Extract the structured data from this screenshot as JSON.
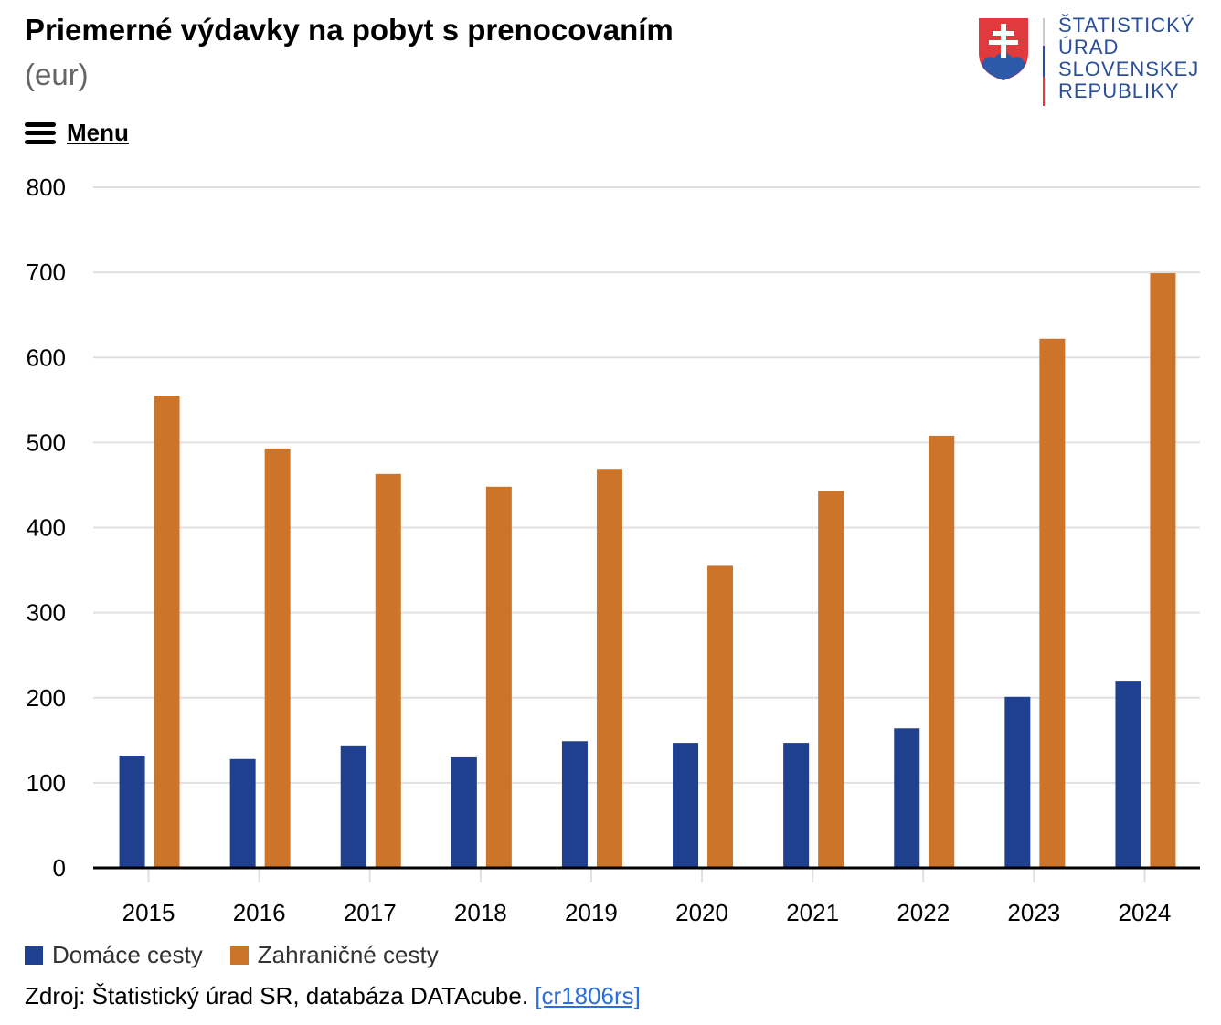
{
  "header": {
    "title": "Priemerné výdavky na pobyt s prenocovaním",
    "subtitle": "(eur)",
    "menu_label": "Menu"
  },
  "logo": {
    "lines": [
      "ŠTATISTICKÝ",
      "ÚRAD",
      "SLOVENSKEJ",
      "REPUBLIKY"
    ]
  },
  "chart_data": {
    "type": "bar",
    "title": "Priemerné výdavky na pobyt s prenocovaním",
    "ylabel": "eur",
    "xlabel": "",
    "ylim": [
      0,
      800
    ],
    "yticks": [
      0,
      100,
      200,
      300,
      400,
      500,
      600,
      700,
      800
    ],
    "grid": true,
    "legend": "bottom-left",
    "categories": [
      "2015",
      "2016",
      "2017",
      "2018",
      "2019",
      "2020",
      "2021",
      "2022",
      "2023",
      "2024"
    ],
    "series": [
      {
        "name": "Domáce cesty",
        "color": "#1f3f8f",
        "values": [
          132,
          128,
          143,
          130,
          149,
          147,
          147,
          164,
          201,
          220
        ]
      },
      {
        "name": "Zahraničné cesty",
        "color": "#cc742a",
        "values": [
          555,
          493,
          463,
          448,
          469,
          355,
          443,
          508,
          622,
          699
        ]
      }
    ]
  },
  "footer": {
    "source_text": "Zdroj: Štatistický úrad SR, databáza DATAcube.",
    "source_link": "[cr1806rs]"
  }
}
